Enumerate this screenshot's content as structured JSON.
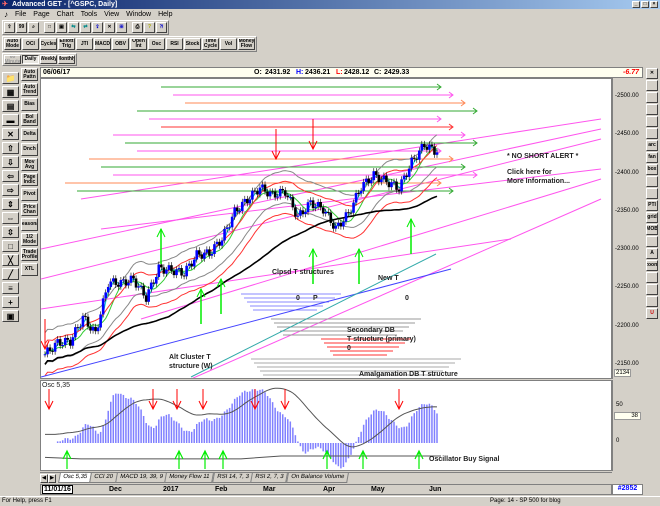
{
  "window": {
    "title": "Advanced GET - [^GSPC, Daily]",
    "controls": [
      "_",
      "□",
      "×"
    ]
  },
  "menu": [
    "File",
    "Page",
    "Chart",
    "Tools",
    "View",
    "Window",
    "Help"
  ],
  "toolbar1": [
    "pointer",
    "quote",
    "search",
    "new",
    "save",
    "open",
    "export",
    "link",
    "close",
    "tile",
    "print",
    "help",
    "context-help"
  ],
  "toolbar2": [
    "Auto Mode",
    "OCI",
    "Cycles",
    "Elliott Trig",
    "JTI",
    "MACD",
    "OBV",
    "Open Int",
    "Osc",
    "RSI",
    "Stock",
    "Time Cycle",
    "Vol",
    "Money Flow"
  ],
  "timeframes": [
    "60 Minute",
    "Daily",
    "Weekly",
    "Monthly"
  ],
  "active_timeframe": "Daily",
  "left_tools_a": [
    "folder",
    "chart-group",
    "quote-board",
    "import",
    "chart-new",
    "up",
    "down",
    "left",
    "right",
    "compress",
    "expand",
    "zoom",
    "blank",
    "lines",
    "gann",
    "fib",
    "crosshair",
    "save-page"
  ],
  "left_tools_b": [
    "Auto Pattn",
    "Auto Trend",
    "Bias",
    "Bol Band",
    "Delta",
    "Dnch",
    "Mov Avg",
    "Page Indic",
    "Pivot",
    "Price Chan",
    "Seasonal",
    "1/2 Mode",
    "Trade Profile",
    "XTL"
  ],
  "info": {
    "date": "06/06/17",
    "open_label": "O:",
    "open": "2431.92",
    "high_label": "H:",
    "high": "2436.21",
    "low_label": "L:",
    "low": "2428.12",
    "close_label": "C:",
    "close": "2429.33",
    "change": "-6.77"
  },
  "price_axis": {
    "ticks": [
      "2500.00",
      "2450.00",
      "2400.00",
      "2350.00",
      "2300.00",
      "2250.00",
      "2200.00",
      "2150.00"
    ],
    "current": "2134"
  },
  "right_tools": [
    "close",
    "pencil",
    "trendline",
    "FIB RET",
    "FIB EXT",
    "FIB TPG",
    "arc",
    "fan",
    "box",
    "ellipse",
    "eraser",
    "PTI",
    "grid",
    "MOB",
    "magnify-tool",
    "A",
    "zoom",
    "markers",
    "layout",
    "layout2",
    "U"
  ],
  "annotations": {
    "no_short": "* NO SHORT ALERT *",
    "click1": "Click here for",
    "click2": "More Information...",
    "clpsd": "Clpsd T structures",
    "zero1": "0",
    "p": "P",
    "new_t": "New T",
    "zero2": "0",
    "secondary1": "Secondary DB",
    "secondary2": "T structure (primary)",
    "zero3": "0",
    "alt1": "Alt Cluster T",
    "alt2": "structure (W)",
    "amalg": "Amalgamation DB T structure",
    "osc_buy": "Oscillator Buy Signal"
  },
  "oscillator": {
    "label": "Osc 5,35",
    "ticks": [
      "50",
      "0"
    ],
    "current": "38"
  },
  "tabs": [
    "Osc 5,35",
    "CCI 20",
    "MACD 19, 39, 9",
    "Money Flow 11",
    "RSI 14, 7, 3",
    "RSI 2, 7, 3",
    "On Balance Volume"
  ],
  "active_tab": "Osc 5,35",
  "date_axis": {
    "start": "11/01/16",
    "labels": [
      "Dec",
      "2017",
      "Feb",
      "Mar",
      "Apr",
      "May",
      "Jun"
    ],
    "bar_number": "#2852"
  },
  "status": {
    "left": "For Help, press F1",
    "right": "Page: 14 - SP 500 for blog"
  },
  "colors": {
    "up_candle": "#0000ff",
    "down_candle": "#000000",
    "ma_long": "#000000",
    "osc_bars": "#8080ff",
    "sell_arrow": "#ff0000",
    "buy_arrow": "#00ee00",
    "change": "#ff0000"
  },
  "chart_data": {
    "type": "candlestick",
    "symbol": "^GSPC",
    "timeframe": "Daily",
    "dates": [
      "2016-11-04",
      "2016-11-11",
      "2016-11-18",
      "2016-11-25",
      "2016-12-02",
      "2016-12-09",
      "2016-12-16",
      "2016-12-23",
      "2016-12-30",
      "2017-01-06",
      "2017-01-13",
      "2017-01-20",
      "2017-01-27",
      "2017-02-03",
      "2017-02-10",
      "2017-02-17",
      "2017-02-24",
      "2017-03-03",
      "2017-03-10",
      "2017-03-17",
      "2017-03-24",
      "2017-03-31",
      "2017-04-07",
      "2017-04-13",
      "2017-04-21",
      "2017-04-28",
      "2017-05-05",
      "2017-05-12",
      "2017-05-19",
      "2017-05-26",
      "2017-06-02",
      "2017-06-06"
    ],
    "closes": [
      2165,
      2180,
      2182,
      2213,
      2192,
      2259,
      2258,
      2263,
      2239,
      2277,
      2275,
      2271,
      2295,
      2297,
      2316,
      2351,
      2367,
      2383,
      2373,
      2378,
      2344,
      2363,
      2355,
      2329,
      2349,
      2384,
      2399,
      2391,
      2382,
      2416,
      2439,
      2429
    ],
    "ylim": [
      2134,
      2530
    ]
  }
}
